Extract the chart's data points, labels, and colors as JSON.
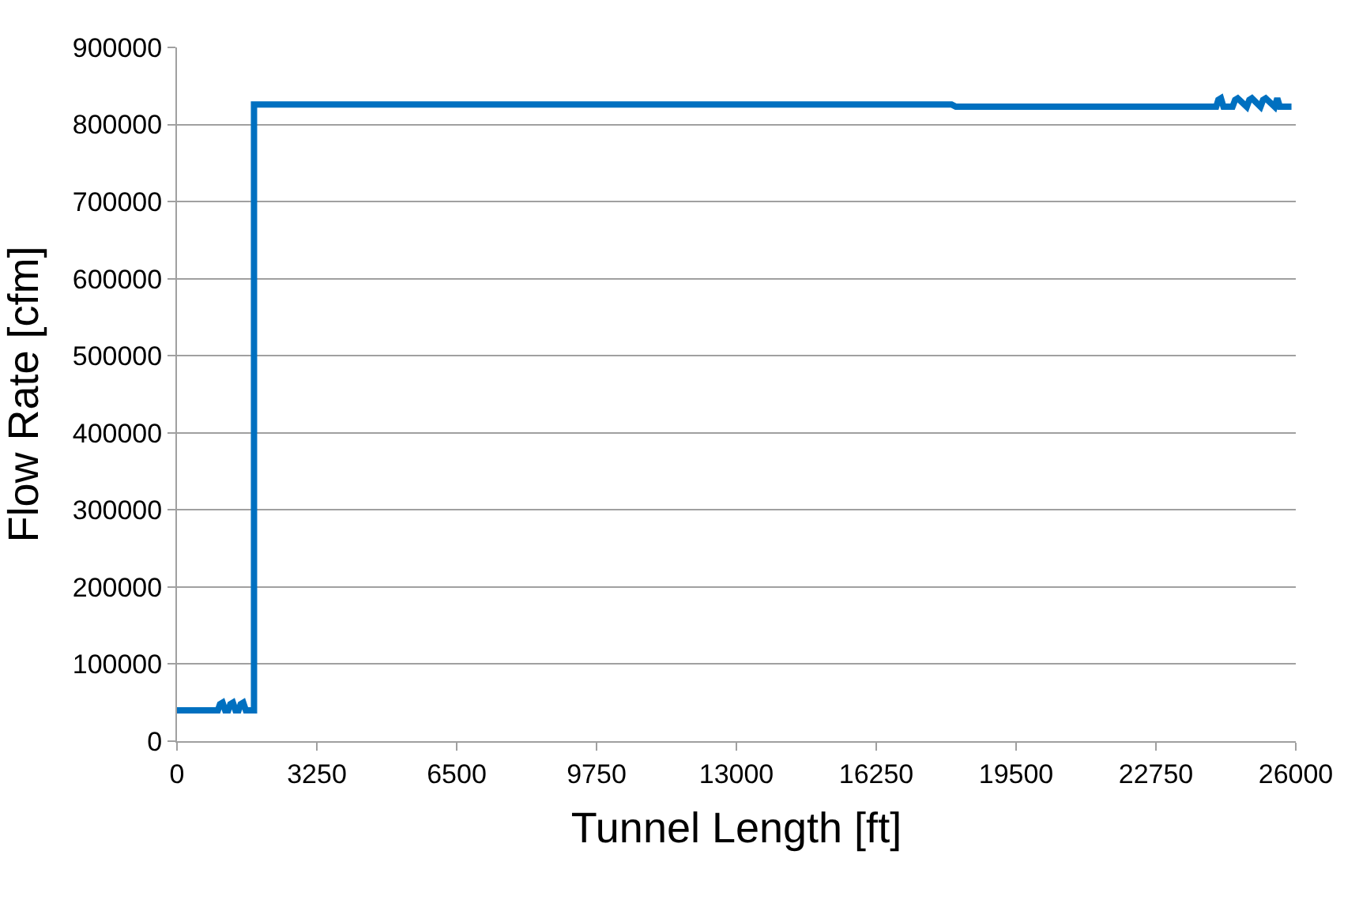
{
  "chart_data": {
    "type": "line",
    "xlabel": "Tunnel Length [ft]",
    "ylabel": "Flow Rate [cfm]",
    "x": [
      0,
      950,
      1000,
      1060,
      1120,
      1190,
      1240,
      1300,
      1360,
      1430,
      1480,
      1540,
      1600,
      1790,
      1790,
      18000,
      18100,
      24150,
      24200,
      24260,
      24320,
      24530,
      24590,
      24650,
      24860,
      24920,
      24980,
      25180,
      25240,
      25300,
      25510,
      25570,
      25630,
      25900
    ],
    "series": [
      {
        "color": "#0070c0",
        "values": [
          40000,
          40000,
          48000,
          50000,
          40000,
          40000,
          48000,
          50000,
          40000,
          40000,
          48000,
          50000,
          40000,
          40000,
          826000,
          826000,
          823000,
          823000,
          832000,
          834000,
          823000,
          823000,
          832000,
          834000,
          823000,
          832000,
          834000,
          823000,
          832000,
          834000,
          823000,
          834000,
          823000,
          823000
        ]
      }
    ],
    "xlim": [
      0,
      26000
    ],
    "xticks": [
      0,
      3250,
      6500,
      9750,
      13000,
      16250,
      19500,
      22750,
      26000
    ],
    "ylim": [
      0,
      900000
    ],
    "yticks": [
      0,
      100000,
      200000,
      300000,
      400000,
      500000,
      600000,
      700000,
      800000,
      900000
    ],
    "grid": "y",
    "legend": false,
    "marker": "none",
    "line_style": "solid"
  }
}
